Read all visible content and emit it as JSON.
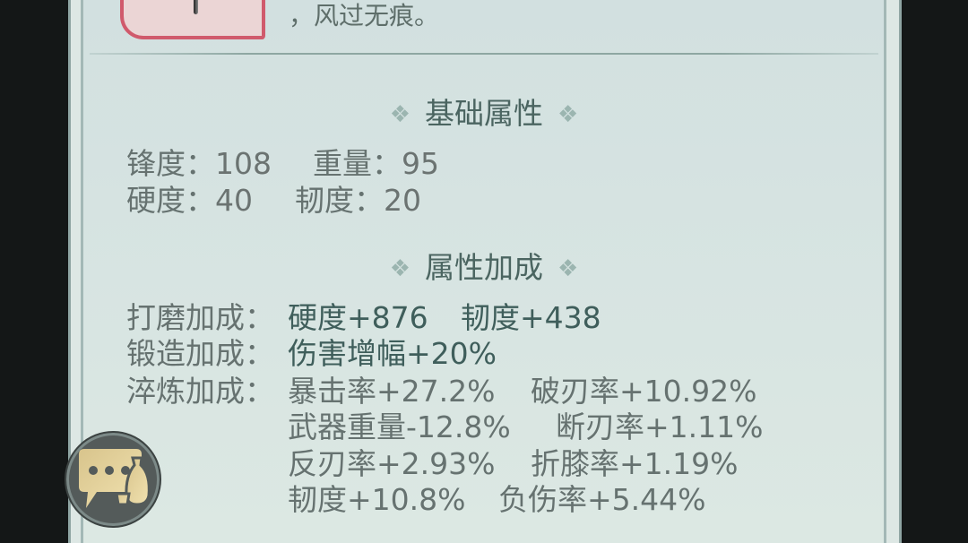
{
  "item": {
    "description_tail": "，风过无痕。"
  },
  "basic": {
    "title": "基础属性",
    "sharpness_label": "锋度：",
    "sharpness": "108",
    "weight_label": "重量：",
    "weight": "95",
    "hardness_label": "硬度：",
    "hardness": "40",
    "toughness_label": "韧度：",
    "toughness": "20"
  },
  "bonus": {
    "title": "属性加成",
    "polish_label": "打磨加成：",
    "polish": [
      "硬度+876",
      "韧度+438"
    ],
    "forge_label": "锻造加成：",
    "forge": [
      "伤害增幅+20%"
    ],
    "temper_label": "淬炼加成：",
    "temper": [
      "暴击率+27.2%",
      "破刃率+10.92%",
      "武器重量-12.8%",
      "断刃率+1.11%",
      "反刃率+2.93%",
      "折膝率+1.19%",
      "韧度+10.8%",
      "负伤率+5.44%"
    ]
  },
  "icons": {
    "chat": "chat-bubble-wine-icon",
    "diamond": "diamond-ornament-icon"
  },
  "colors": {
    "accent_border": "#d05a6c",
    "heading": "#4b6561",
    "chat_gold": "#e6d39e"
  }
}
